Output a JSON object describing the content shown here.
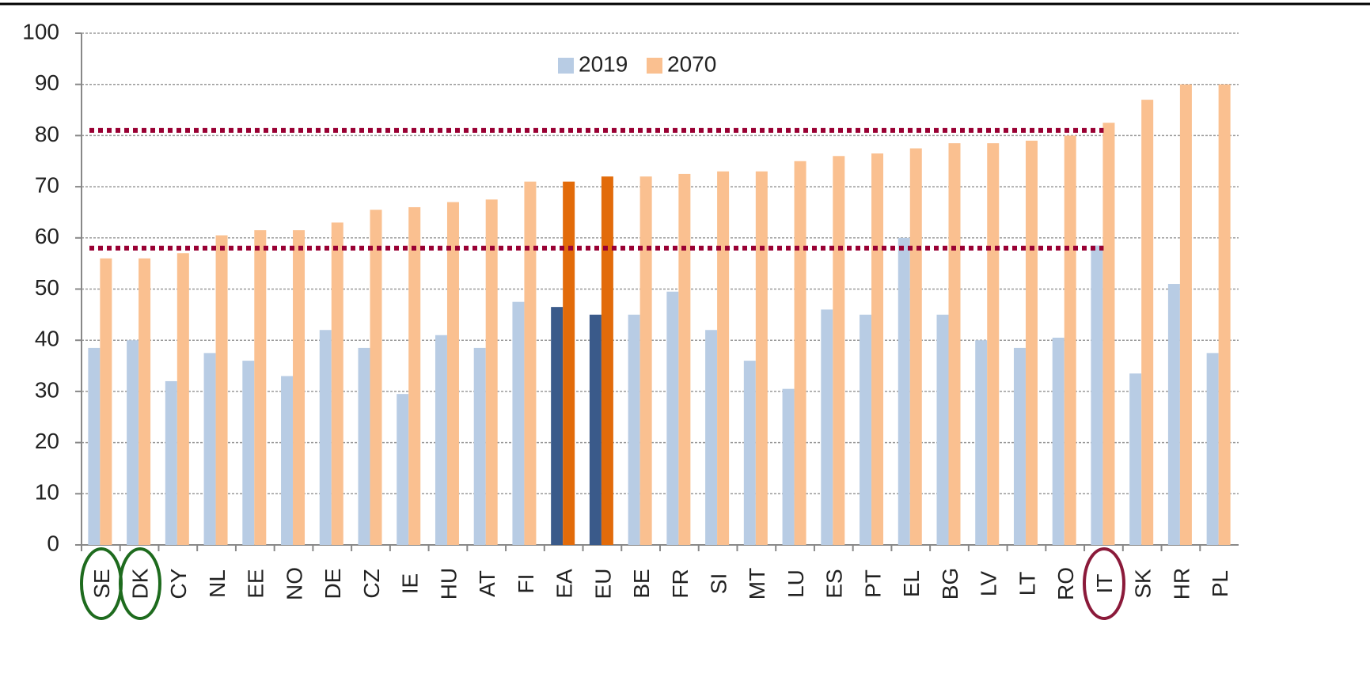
{
  "chart_data": {
    "type": "bar",
    "categories": [
      "SE",
      "DK",
      "CY",
      "NL",
      "EE",
      "NO",
      "DE",
      "CZ",
      "IE",
      "HU",
      "AT",
      "FI",
      "EA",
      "EU",
      "BE",
      "FR",
      "SI",
      "MT",
      "LU",
      "ES",
      "PT",
      "EL",
      "BG",
      "LV",
      "LT",
      "RO",
      "IT",
      "SK",
      "HR",
      "PL"
    ],
    "series": [
      {
        "name": "2019",
        "color": "#b8cce4",
        "colors": [
          "#b8cce4",
          "#b8cce4",
          "#b8cce4",
          "#b8cce4",
          "#b8cce4",
          "#b8cce4",
          "#b8cce4",
          "#b8cce4",
          "#b8cce4",
          "#b8cce4",
          "#b8cce4",
          "#b8cce4",
          "#3a5a8a",
          "#3a5a8a",
          "#b8cce4",
          "#b8cce4",
          "#b8cce4",
          "#b8cce4",
          "#b8cce4",
          "#b8cce4",
          "#b8cce4",
          "#b8cce4",
          "#b8cce4",
          "#b8cce4",
          "#b8cce4",
          "#b8cce4",
          "#b8cce4",
          "#b8cce4",
          "#b8cce4",
          "#b8cce4"
        ],
        "values": [
          38.5,
          40,
          32,
          37.5,
          36,
          33,
          42,
          38.5,
          29.5,
          41,
          38.5,
          47.5,
          46.5,
          45,
          45,
          49.5,
          42,
          36,
          30.5,
          46,
          45,
          60,
          45,
          40,
          38.5,
          40.5,
          58.5,
          33.5,
          51,
          37.5
        ]
      },
      {
        "name": "2070",
        "color": "#fac090",
        "colors": [
          "#fac090",
          "#fac090",
          "#fac090",
          "#fac090",
          "#fac090",
          "#fac090",
          "#fac090",
          "#fac090",
          "#fac090",
          "#fac090",
          "#fac090",
          "#fac090",
          "#e26b0a",
          "#e26b0a",
          "#fac090",
          "#fac090",
          "#fac090",
          "#fac090",
          "#fac090",
          "#fac090",
          "#fac090",
          "#fac090",
          "#fac090",
          "#fac090",
          "#fac090",
          "#fac090",
          "#fac090",
          "#fac090",
          "#fac090",
          "#fac090"
        ],
        "values": [
          56,
          56,
          57,
          60.5,
          61.5,
          61.5,
          63,
          65.5,
          66,
          67,
          67.5,
          71,
          71,
          72,
          72,
          72.5,
          73,
          73,
          75,
          76,
          76.5,
          77.5,
          78.5,
          78.5,
          79,
          80,
          82.5,
          87,
          90,
          90
        ]
      }
    ],
    "ylim": [
      0,
      100
    ],
    "yticks": [
      0,
      10,
      20,
      30,
      40,
      50,
      60,
      70,
      80,
      90,
      100
    ],
    "grid": true,
    "legend": "top",
    "reference_lines": [
      {
        "value": 81,
        "color": "#990033"
      },
      {
        "value": 58,
        "color": "#990033"
      }
    ]
  }
}
